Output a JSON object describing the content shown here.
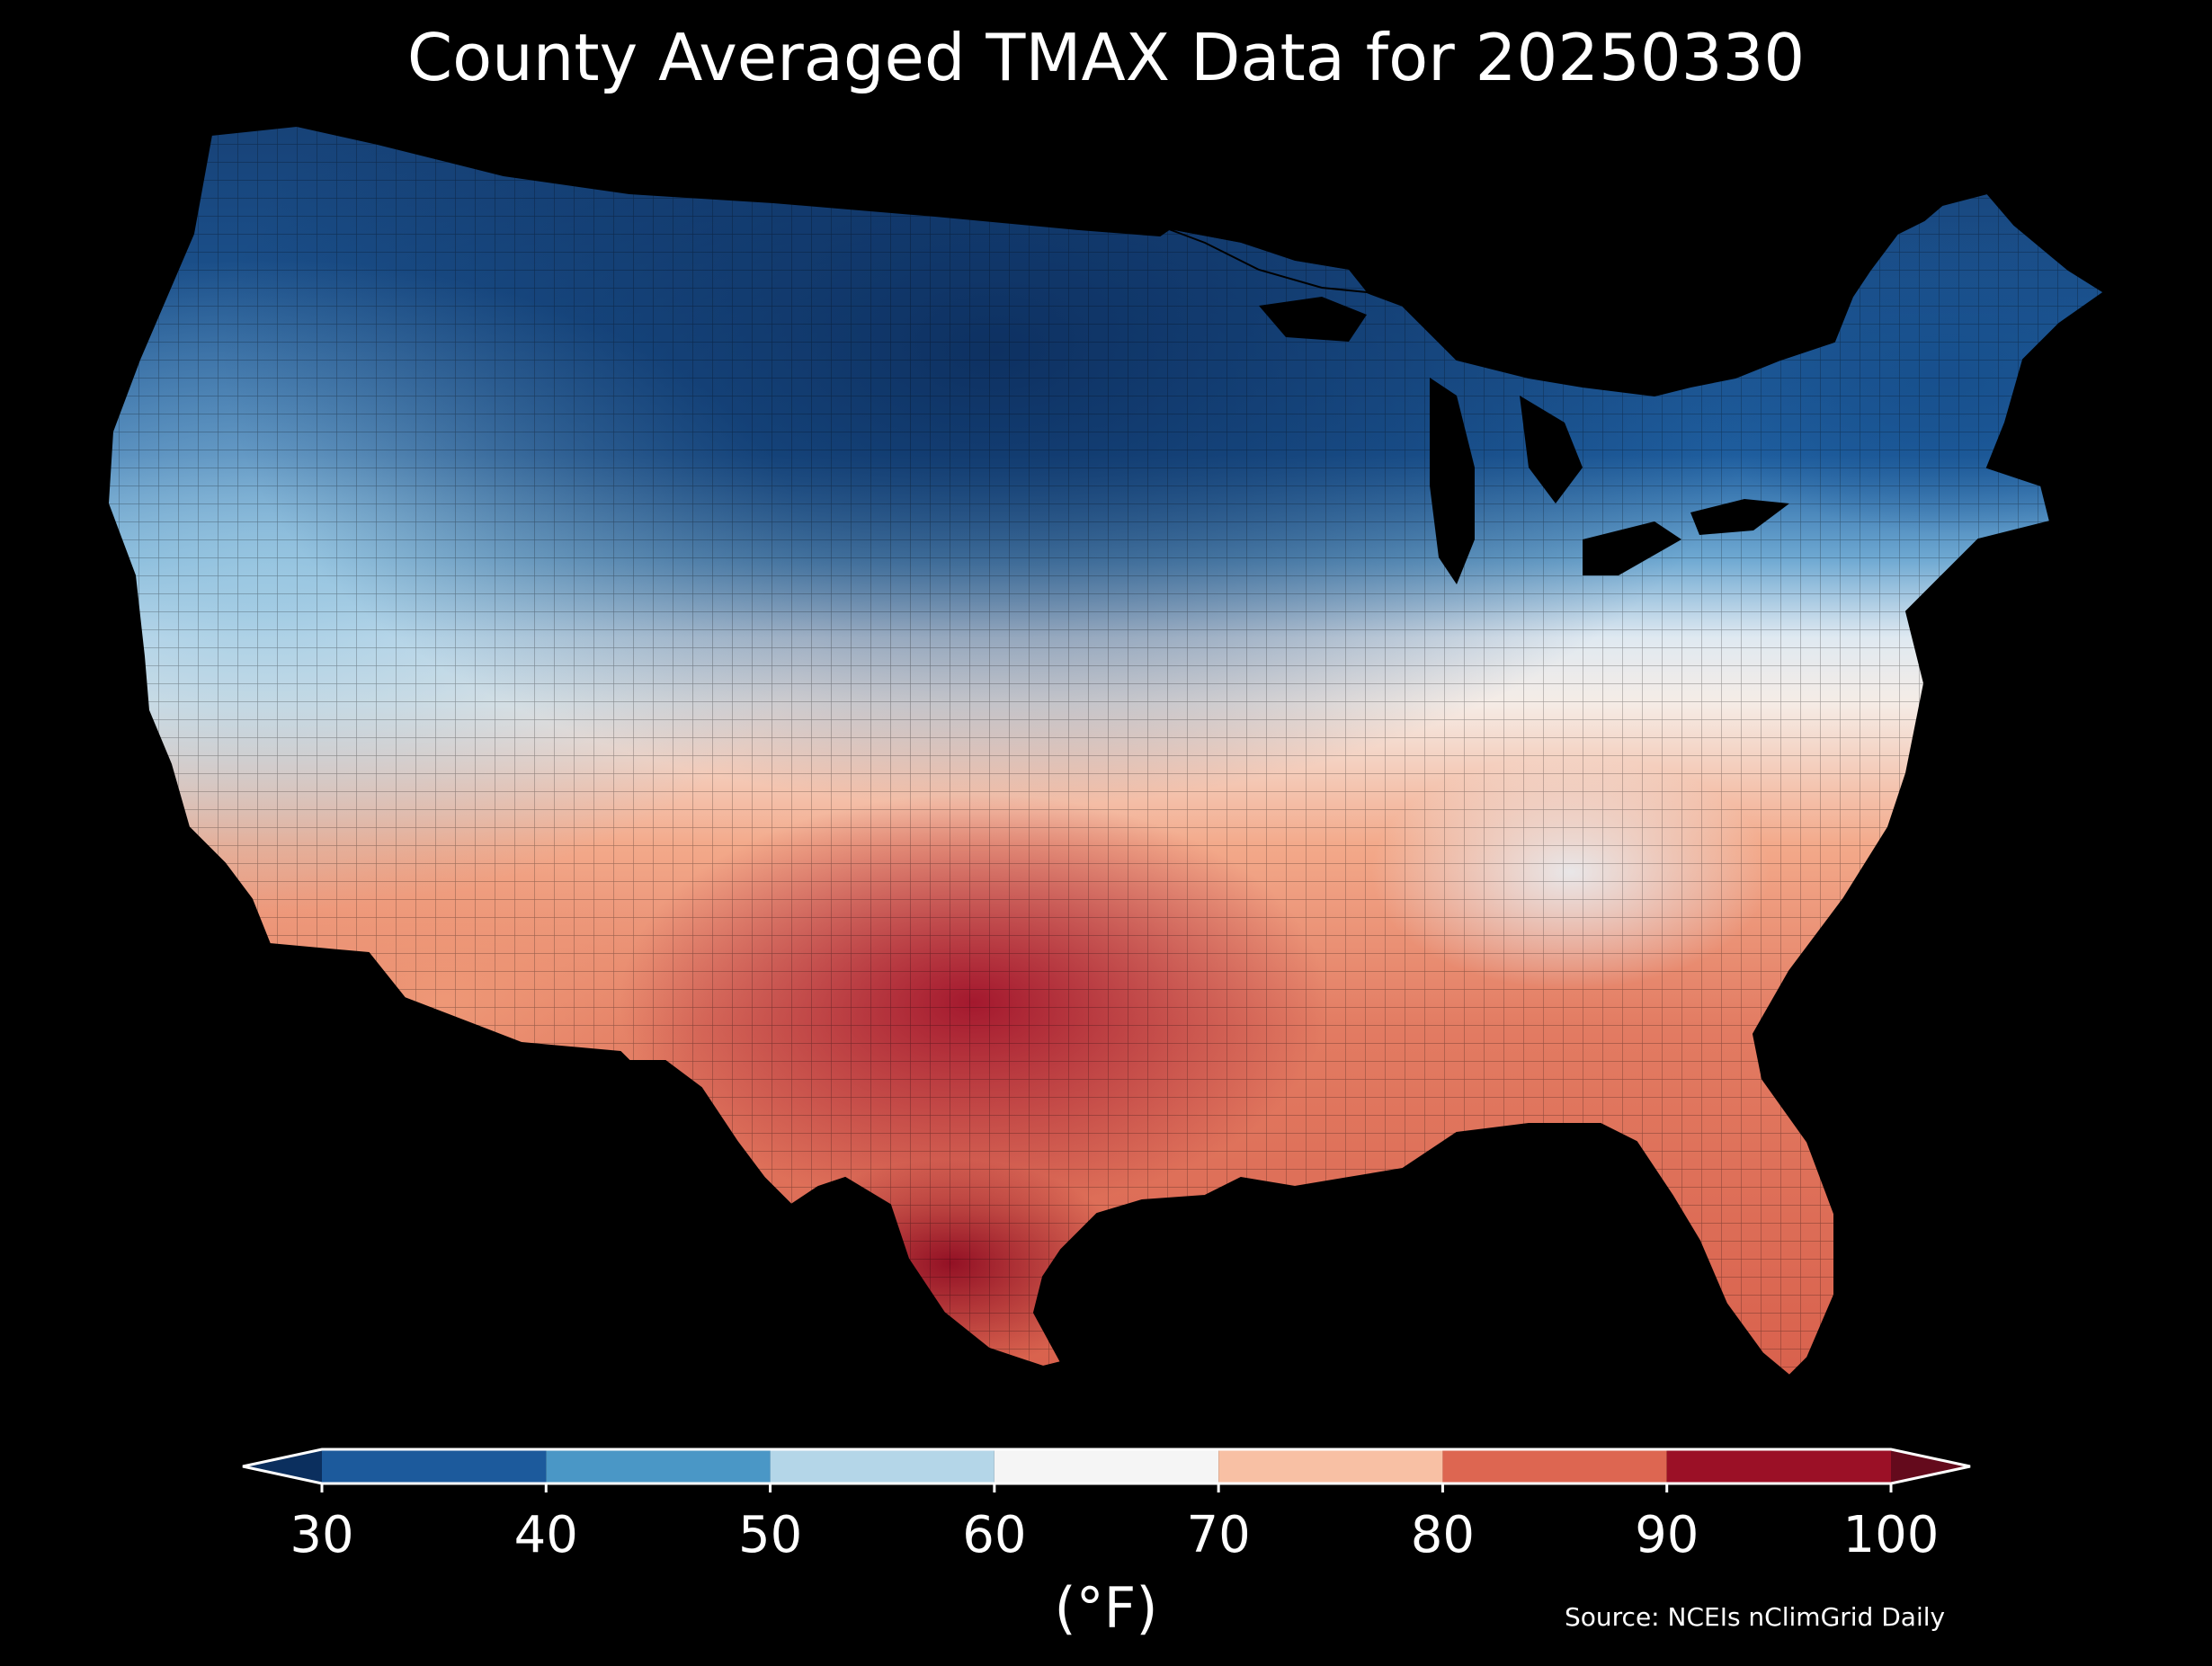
{
  "title": "County Averaged TMAX Data for 20250330",
  "colorbar": {
    "ticks": [
      "30",
      "40",
      "50",
      "60",
      "70",
      "80",
      "90",
      "100"
    ],
    "unit": "(°F)",
    "bins": [
      {
        "from": 30,
        "to": 40,
        "color": "#1c5a9c"
      },
      {
        "from": 40,
        "to": 50,
        "color": "#4a97c6"
      },
      {
        "from": 50,
        "to": 60,
        "color": "#b4d6e8"
      },
      {
        "from": 60,
        "to": 70,
        "color": "#f5f5f5"
      },
      {
        "from": 70,
        "to": 80,
        "color": "#f8c0a4"
      },
      {
        "from": 80,
        "to": 90,
        "color": "#dd6651"
      },
      {
        "from": 90,
        "to": 100,
        "color": "#9b1026"
      }
    ],
    "under_color": "#0b2f5e",
    "over_color": "#640a1c"
  },
  "source": "Source: NCEIs nClimGrid Daily"
}
